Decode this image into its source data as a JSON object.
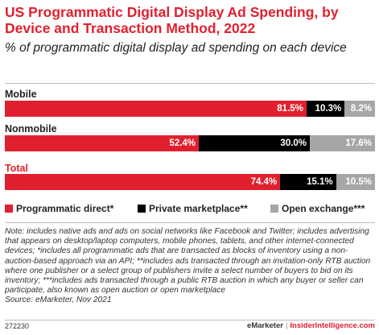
{
  "title": "US Programmatic Digital Display Ad Spending, by Device and Transaction Method, 2022",
  "subtitle": "% of programmatic digital display ad spending on each device",
  "colors": {
    "accent": "#e1202f",
    "programmatic_direct": "#e1202f",
    "private_marketplace": "#000000",
    "open_exchange": "#a6a6a6"
  },
  "chart_data": {
    "type": "bar",
    "orientation": "horizontal-stacked-100",
    "categories": [
      "Mobile",
      "Nonmobile",
      "Total"
    ],
    "series": [
      {
        "name": "Programmatic direct*",
        "values": [
          81.5,
          52.4,
          74.4
        ],
        "labels": [
          "81.5%",
          "52.4%",
          "74.4%"
        ]
      },
      {
        "name": "Private marketplace**",
        "values": [
          10.3,
          30.0,
          15.1
        ],
        "labels": [
          "10.3%",
          "30.0%",
          "15.1%"
        ]
      },
      {
        "name": "Open exchange***",
        "values": [
          8.2,
          17.6,
          10.5
        ],
        "labels": [
          "8.2%",
          "17.6%",
          "10.5%"
        ]
      }
    ],
    "legend_position": "bottom",
    "grid": false
  },
  "note": "Note: includes native ads and ads on social networks like Facebook and Twitter; includes advertising that appears on desktop/laptop computers, mobile phones, tablets, and other internet-connected devices; *includes all programmatic ads that are transacted as blocks of inventory using a non-auction-based approach via an API; **includes ads transacted through an invitation-only RTB auction where one publisher or a select group of publishers invite a select number of buyers to bid on its inventory; ***includes ads transacted through a public RTB auction in which any buyer or seller can participate, also known as open auction or open marketplace",
  "source": "Source: eMarketer, Nov 2021",
  "footer": {
    "chart_id": "272230",
    "brand_left": "eMarketer",
    "separator": "|",
    "brand_right": "InsiderIntelligence.com"
  }
}
